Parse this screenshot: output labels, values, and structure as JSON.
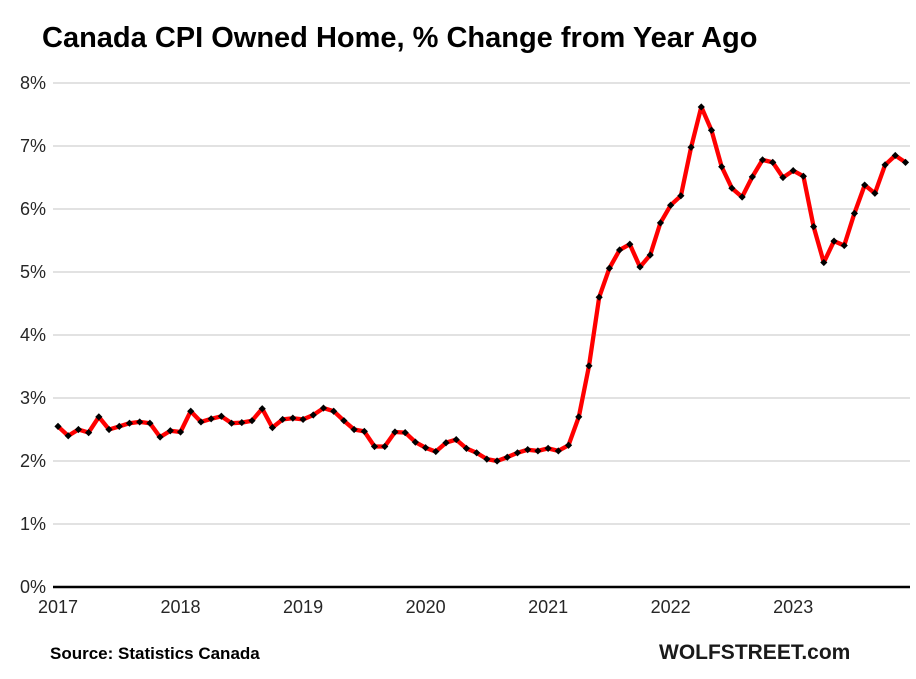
{
  "page": {
    "title": "Canada CPI Owned Home, % Change from Year Ago",
    "source": "Source: Statistics Canada",
    "brand": "WOLFSTREET.com"
  },
  "colors": {
    "line": "#ff0000",
    "marker": "#000000",
    "gridline": "#d9d9d9",
    "axis": "#000000",
    "tick_text": "#262626",
    "background": "#ffffff"
  },
  "chart_data": {
    "type": "line",
    "title": "Canada CPI Owned Home, % Change from Year Ago",
    "xlabel": "",
    "ylabel": "",
    "ylim": [
      0,
      8
    ],
    "y_ticks": [
      "0%",
      "1%",
      "2%",
      "3%",
      "4%",
      "5%",
      "6%",
      "7%",
      "8%"
    ],
    "x_year_labels": [
      "2017",
      "2018",
      "2019",
      "2020",
      "2021",
      "2022",
      "2023"
    ],
    "grid": "horizontal",
    "legend": "none",
    "months": [
      "2017-01",
      "2017-02",
      "2017-03",
      "2017-04",
      "2017-05",
      "2017-06",
      "2017-07",
      "2017-08",
      "2017-09",
      "2017-10",
      "2017-11",
      "2017-12",
      "2018-01",
      "2018-02",
      "2018-03",
      "2018-04",
      "2018-05",
      "2018-06",
      "2018-07",
      "2018-08",
      "2018-09",
      "2018-10",
      "2018-11",
      "2018-12",
      "2019-01",
      "2019-02",
      "2019-03",
      "2019-04",
      "2019-05",
      "2019-06",
      "2019-07",
      "2019-08",
      "2019-09",
      "2019-10",
      "2019-11",
      "2019-12",
      "2020-01",
      "2020-02",
      "2020-03",
      "2020-04",
      "2020-05",
      "2020-06",
      "2020-07",
      "2020-08",
      "2020-09",
      "2020-10",
      "2020-11",
      "2020-12",
      "2021-01",
      "2021-02",
      "2021-03",
      "2021-04",
      "2021-05",
      "2021-06",
      "2021-07",
      "2021-08",
      "2021-09",
      "2021-10",
      "2021-11",
      "2021-12",
      "2022-01",
      "2022-02",
      "2022-03",
      "2022-04",
      "2022-05",
      "2022-06",
      "2022-07",
      "2022-08",
      "2022-09",
      "2022-10",
      "2022-11",
      "2022-12",
      "2023-01",
      "2023-02",
      "2023-03",
      "2023-04",
      "2023-05",
      "2023-06",
      "2023-07",
      "2023-08",
      "2023-09",
      "2023-10",
      "2023-11",
      "2023-12"
    ],
    "series": [
      {
        "name": "CPI Owned Home, % change from year ago",
        "color": "#ff0000",
        "marker": "black-diamond",
        "values": [
          2.55,
          2.4,
          2.5,
          2.45,
          2.7,
          2.5,
          2.55,
          2.6,
          2.62,
          2.6,
          2.38,
          2.48,
          2.46,
          2.79,
          2.62,
          2.67,
          2.71,
          2.6,
          2.61,
          2.64,
          2.83,
          2.53,
          2.66,
          2.68,
          2.66,
          2.73,
          2.84,
          2.79,
          2.64,
          2.5,
          2.47,
          2.23,
          2.23,
          2.46,
          2.45,
          2.3,
          2.21,
          2.15,
          2.29,
          2.34,
          2.2,
          2.13,
          2.03,
          2.0,
          2.06,
          2.13,
          2.18,
          2.16,
          2.2,
          2.16,
          2.25,
          2.7,
          3.51,
          4.6,
          5.06,
          5.35,
          5.44,
          5.08,
          5.27,
          5.78,
          6.06,
          6.21,
          6.98,
          7.62,
          7.25,
          6.67,
          6.33,
          6.19,
          6.51,
          6.78,
          6.74,
          6.5,
          6.61,
          6.52,
          5.72,
          5.15,
          5.49,
          5.42,
          5.93,
          6.38,
          6.25,
          6.7,
          6.85,
          6.74
        ]
      }
    ]
  }
}
